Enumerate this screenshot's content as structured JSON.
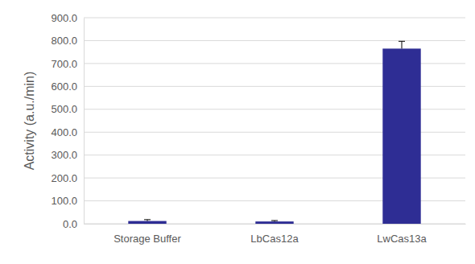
{
  "chart_data": {
    "type": "bar",
    "y_label": "Activity (a.u./min)",
    "categories": [
      "Storage Buffer",
      "LbCas12a",
      "LwCas13a"
    ],
    "values": [
      12,
      10,
      765
    ],
    "errors": [
      6,
      4,
      32
    ],
    "color": "#2e2d94",
    "ylim": [
      0,
      900
    ],
    "yticks": [
      {
        "value": 0,
        "label": "0.0"
      },
      {
        "value": 100,
        "label": "100.0"
      },
      {
        "value": 200,
        "label": "200.0"
      },
      {
        "value": 300,
        "label": "300.0"
      },
      {
        "value": 400,
        "label": "400.0"
      },
      {
        "value": 500,
        "label": "500.0"
      },
      {
        "value": 600,
        "label": "600.0"
      },
      {
        "value": 700,
        "label": "700.0"
      },
      {
        "value": 800,
        "label": "800.0"
      },
      {
        "value": 900,
        "label": "900.0"
      }
    ],
    "grid": true
  }
}
